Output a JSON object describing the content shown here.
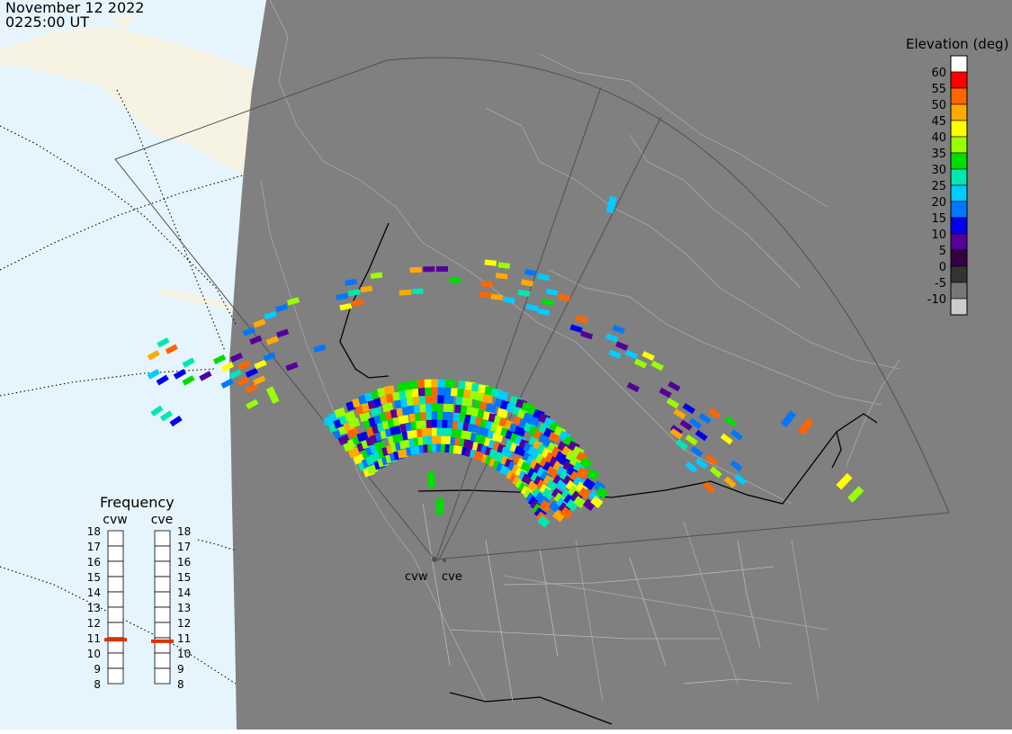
{
  "header": {
    "date": "November 12 2022",
    "time": "0225:00 UT"
  },
  "legend": {
    "title": "Elevation (deg)",
    "entries": [
      {
        "label": "60",
        "color": "#ff0000"
      },
      {
        "label": "55",
        "color": "#ff6600"
      },
      {
        "label": "50",
        "color": "#ffaa00"
      },
      {
        "label": "45",
        "color": "#ffff00"
      },
      {
        "label": "40",
        "color": "#99ff00"
      },
      {
        "label": "35",
        "color": "#00dd00"
      },
      {
        "label": "30",
        "color": "#00e8b0"
      },
      {
        "label": "25",
        "color": "#00ccff"
      },
      {
        "label": "20",
        "color": "#0077ff"
      },
      {
        "label": "15",
        "color": "#0000ee"
      },
      {
        "label": "10",
        "color": "#550099"
      },
      {
        "label": "5",
        "color": "#330044"
      },
      {
        "label": "0",
        "color": "#333333"
      },
      {
        "label": "-5",
        "color": "#777777"
      },
      {
        "label": "-10",
        "color": "#cccccc"
      }
    ],
    "top_color": "#ffffff"
  },
  "frequency": {
    "title": "Frequency",
    "radars": [
      "cvw",
      "cve"
    ],
    "scale": [
      "18",
      "17",
      "16",
      "15",
      "14",
      "13",
      "12",
      "11",
      "10",
      "9",
      "8"
    ],
    "values_mhz": [
      10.9,
      10.8
    ],
    "marker_color": "#dd3300"
  },
  "map": {
    "radar_labels": [
      "cvw",
      "cve"
    ],
    "night_color": "#808080",
    "day_water_color": "#e6f5fd",
    "land_day_color": "#f7f3e3",
    "border_color": "#000000",
    "coast_color": "#a8a8a8",
    "fov_color": "#505050"
  }
}
